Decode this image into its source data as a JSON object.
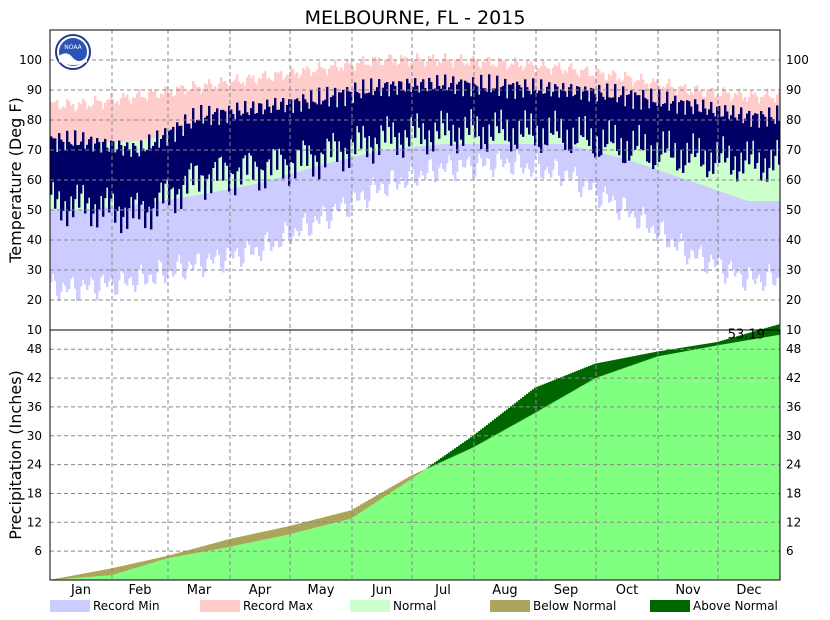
{
  "chart_data": {
    "type": "area",
    "title": "MELBOURNE, FL - 2015",
    "months": [
      "Jan",
      "Feb",
      "Mar",
      "Apr",
      "May",
      "Jun",
      "Jul",
      "Aug",
      "Sep",
      "Oct",
      "Nov",
      "Dec"
    ],
    "temperature": {
      "ylabel": "Temperature (Deg F)",
      "ylim": [
        10,
        110
      ],
      "yticks": [
        10,
        20,
        30,
        40,
        50,
        60,
        70,
        80,
        90,
        100
      ],
      "normal_high_monthly": [
        72,
        73,
        77,
        81,
        85,
        89,
        90,
        90,
        89,
        85,
        80,
        74
      ],
      "normal_low_monthly": [
        50,
        52,
        55,
        59,
        65,
        70,
        72,
        72,
        72,
        67,
        60,
        53
      ],
      "record_max_monthly": [
        85,
        88,
        91,
        94,
        97,
        100,
        100,
        99,
        97,
        94,
        90,
        88
      ],
      "record_min_monthly": [
        24,
        27,
        32,
        37,
        47,
        58,
        64,
        66,
        62,
        50,
        36,
        27
      ],
      "actual_high_monthly": [
        73,
        70,
        81,
        84,
        87,
        91,
        92,
        91,
        90,
        88,
        85,
        81
      ],
      "actual_low_monthly": [
        52,
        49,
        61,
        64,
        68,
        74,
        76,
        76,
        75,
        71,
        68,
        66
      ]
    },
    "precipitation": {
      "ylabel": "Precipitation (Inches)",
      "ylim": [
        0,
        52
      ],
      "yticks": [
        6,
        12,
        18,
        24,
        30,
        36,
        42,
        48
      ],
      "normal_cumulative_month_end": [
        2.4,
        5.0,
        8.5,
        11.2,
        14.5,
        21.7,
        27.6,
        34.8,
        42.0,
        46.5,
        48.8,
        51.0
      ],
      "actual_cumulative_month_end": [
        1.0,
        4.5,
        6.9,
        9.5,
        12.8,
        21.0,
        30.0,
        40.0,
        45.0,
        47.5,
        49.5,
        53.19
      ],
      "total_label": "53.19"
    },
    "legend": [
      {
        "label": "Record Min",
        "color": "#ccccff"
      },
      {
        "label": "Record Max",
        "color": "#ffcccc"
      },
      {
        "label": "Normal",
        "color": "#ccffcc"
      },
      {
        "label": "Below Normal",
        "color": "#aaa55a"
      },
      {
        "label": "Above Normal",
        "color": "#006600"
      }
    ],
    "colors": {
      "actual_temp": "#000066",
      "precip_normal": "#80ff80",
      "grid": "#888888"
    },
    "grid": true
  },
  "logo": {
    "name": "noaa-logo",
    "text": "NOAA"
  }
}
